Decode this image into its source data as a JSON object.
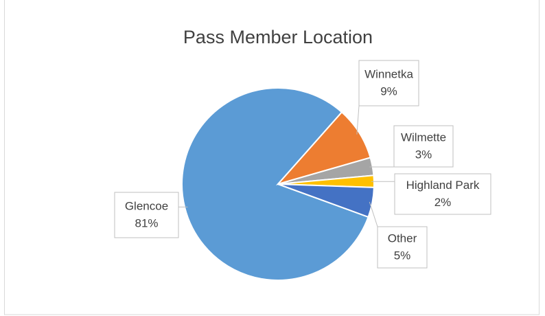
{
  "chart_data": {
    "type": "pie",
    "title": "Pass Member Location",
    "categories": [
      "Glencoe",
      "Winnetka",
      "Wilmette",
      "Highland Park",
      "Other"
    ],
    "values": [
      81,
      9,
      3,
      2,
      5
    ],
    "value_labels": [
      "81%",
      "9%",
      "3%",
      "2%",
      "5%"
    ],
    "colors": [
      "#5b9bd5",
      "#ed7d31",
      "#a5a5a5",
      "#ffc000",
      "#4472c4"
    ]
  }
}
